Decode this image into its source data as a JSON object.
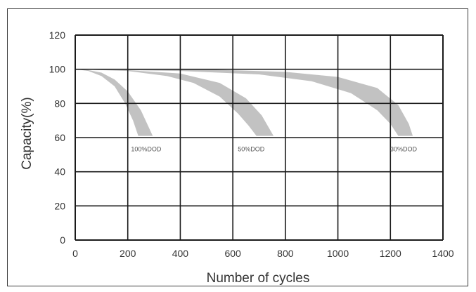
{
  "chart_data": {
    "type": "area",
    "xlabel": "Number of cycles",
    "ylabel": "Capacity(%)",
    "xlim": [
      0,
      1400
    ],
    "ylim": [
      0,
      120
    ],
    "x_ticks": [
      "0",
      "200",
      "400",
      "600",
      "800",
      "1000",
      "1200",
      "1400"
    ],
    "y_ticks": [
      "0",
      "20",
      "40",
      "60",
      "80",
      "100",
      "120"
    ],
    "grid": true,
    "series": [
      {
        "name": "100%DOD",
        "upper": [
          [
            0,
            100
          ],
          [
            50,
            99
          ],
          [
            100,
            96
          ],
          [
            150,
            90
          ],
          [
            190,
            80
          ],
          [
            220,
            70
          ],
          [
            240,
            61
          ]
        ],
        "lower": [
          [
            0,
            100
          ],
          [
            50,
            99.5
          ],
          [
            100,
            98
          ],
          [
            150,
            94
          ],
          [
            200,
            87
          ],
          [
            250,
            76
          ],
          [
            280,
            66
          ],
          [
            295,
            61
          ]
        ],
        "label_at": [
          270,
          52
        ]
      },
      {
        "name": "50%DOD",
        "upper": [
          [
            0,
            100
          ],
          [
            200,
            99
          ],
          [
            350,
            96
          ],
          [
            450,
            92
          ],
          [
            550,
            84
          ],
          [
            620,
            74
          ],
          [
            660,
            67
          ],
          [
            690,
            61
          ]
        ],
        "lower": [
          [
            0,
            100
          ],
          [
            200,
            99.5
          ],
          [
            400,
            97.5
          ],
          [
            550,
            92
          ],
          [
            650,
            83
          ],
          [
            710,
            73
          ],
          [
            740,
            65
          ],
          [
            755,
            61
          ]
        ],
        "label_at": [
          670,
          52
        ]
      },
      {
        "name": "30%DOD",
        "upper": [
          [
            0,
            100
          ],
          [
            400,
            99
          ],
          [
            700,
            97
          ],
          [
            900,
            93
          ],
          [
            1050,
            86
          ],
          [
            1150,
            76
          ],
          [
            1200,
            68
          ],
          [
            1230,
            61
          ]
        ],
        "lower": [
          [
            0,
            100
          ],
          [
            500,
            99.8
          ],
          [
            800,
            98.5
          ],
          [
            1000,
            95.5
          ],
          [
            1150,
            89
          ],
          [
            1230,
            79
          ],
          [
            1270,
            68
          ],
          [
            1285,
            61
          ]
        ],
        "label_at": [
          1250,
          52
        ]
      }
    ],
    "colors": {
      "band": "#c2c2c2",
      "grid": "#1a1a1a"
    }
  }
}
